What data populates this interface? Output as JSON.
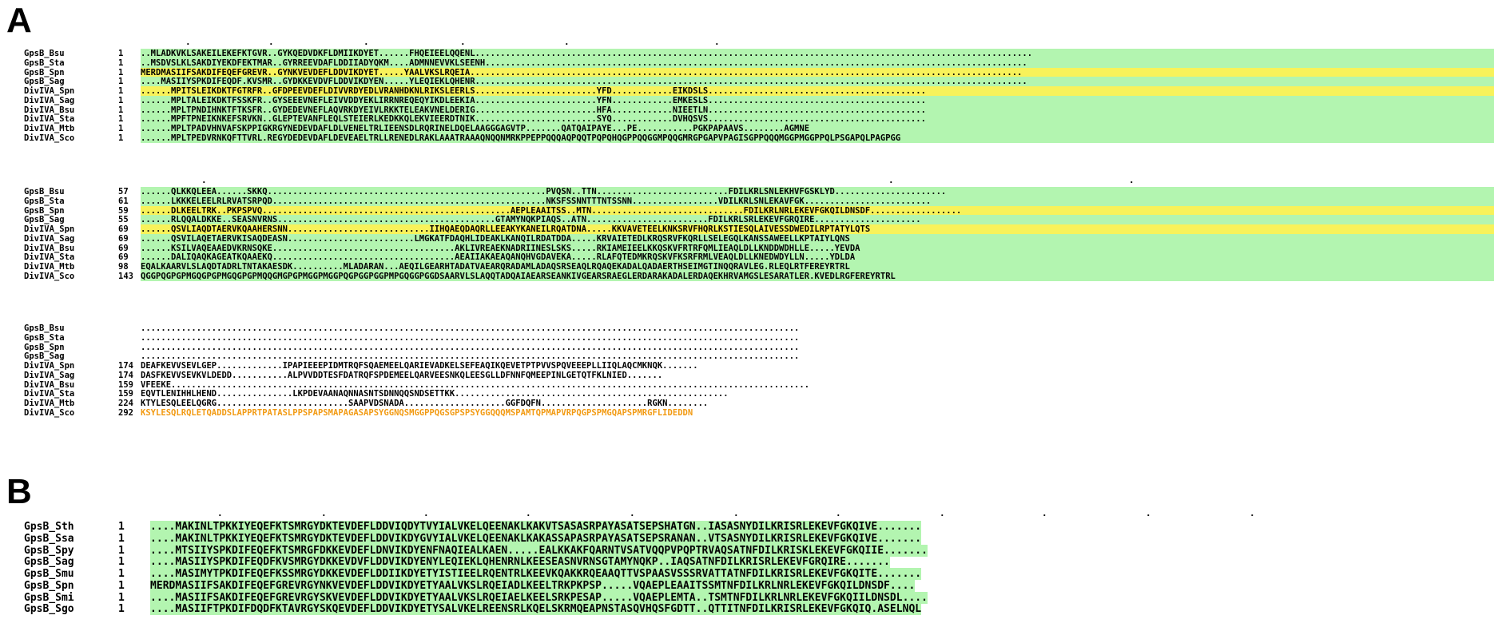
{
  "panels": [
    {
      "label": "A",
      "blocks": [
        {
          "rows": [
            {
              "name": "GpsB_Bsu",
              "start": "1",
              "seq": "..MLADKVKLSAKEILEKEFKTGVR..GYKQEDVDKFLDMIIKDYET......FHQEIEELQQENL..............................................................................................................",
              "bg": "g"
            },
            {
              "name": "GpsB_Sta",
              "start": "1",
              "seq": "..MSDVSLKLSAKDIYEKDFEKTMAR..GYRREEVDAFLDDIIADYQKM....ADMNNEVVKLSEENH...........................................................................................................",
              "bg": "g"
            },
            {
              "name": "GpsB_Spn",
              "start": "1",
              "seq": "MERDMASIIFSAKDIFEQEFGREVR..GYNKVEVDEFLDDVIKDYET.....YAALVKSLRQEIA.............................................................................................................",
              "bg": "y"
            },
            {
              "name": "GpsB_Sag",
              "start": "1",
              "seq": "....MASIIYSPKDIFEQDF.KVSMR..GYDKKEVDVFLDDVIKDYEN.....YLEQIEKLQHENR.............................................................................................................",
              "bg": "g"
            },
            {
              "name": "DivIVA_Spn",
              "start": "1",
              "seq": "......MPITSLEIKDKTFGTRFR..GFDPEEVDEFLDIVVRDYEDLVRANHDKNLRIKSLEERLS........................YFD............EIKDSLS...........................................",
              "bg": "y"
            },
            {
              "name": "DivIVA_Sag",
              "start": "1",
              "seq": "......MPLTALEIKDKTFSSKFR..GYSEEEVNEFLEIVVDDYEKLIRRNREQEQYIKDLEEKIA........................YFN............EMKESLS...........................................",
              "bg": "g"
            },
            {
              "name": "DivIVA_Bsu",
              "start": "1",
              "seq": "......MPLTPNDIHNKTFTKSFR..GYDEDEVNEFLAQVRKDYEIVLRKKTELEAKVNELDERIG........................HFA............NIEETLN...........................................",
              "bg": "g"
            },
            {
              "name": "DivIVA_Sta",
              "start": "1",
              "seq": "......MPFTPNEIKNKEFSRVKN..GLEPTEVANFLEQLSTEIERLKEDKKQLEKVIEERDTNIK........................SYQ............DVHQSVS...........................................",
              "bg": "g"
            },
            {
              "name": "DivIVA_Mtb",
              "start": "1",
              "seq": "......MPLTPADVHNVAFSKPPIGKRGYNEDEVDAFLDLVENELTRLIEENSDLRQRINELDQELAAGGGAGVTP.......QATQAIPAYE...PE...........PGKPAPAAVS........AGMNE",
              "bg": "g"
            },
            {
              "name": "DivIVA_Sco",
              "start": "1",
              "seq": "......MPLTPEDVRNKQFTTVRL.REGYDEDEVDAFLDEVEAELTRLLRENEDLRAKLAAATRAAAQNQQNMRKPPEPPQQQAQPQQTPQPQHQGPPQQGGMPQQGMRGPGAPVPAGISGPPQQQMGGPMGGPPQLPSGAPQLPAGPGG",
              "bg": "g"
            }
          ]
        },
        {
          "rows": [
            {
              "name": "GpsB_Bsu",
              "start": "57",
              "seq": "......QLKKQLEEA......SKKQ.......................................................PVQSN..TTN..........................FDILKRLSNLEKHVFGSKLYD......................",
              "bg": "g"
            },
            {
              "name": "GpsB_Sta",
              "start": "61",
              "seq": "......LKKKELEELRLRVATSRPQD......................................................NKSFSSNNTTTNTSSNN.................VDILKRLSNLEKAVFGK.........................",
              "bg": "g"
            },
            {
              "name": "GpsB_Spn",
              "start": "59",
              "seq": "......DLKEELTRK..PKPSPVQ.................................................AEPLEAAITSS..MTN..............................FDILKRLNRLEKEVFGKQILDNSDF..................",
              "bg": "y"
            },
            {
              "name": "GpsB_Sag",
              "start": "55",
              "seq": "......RLQQALDKKE..SEASNVRNS...........................................GTAMYNQKPIAQS..ATN........................FDILKRLSRLEKEVFGRQIRE.....................",
              "bg": "g"
            },
            {
              "name": "DivIVA_Spn",
              "start": "69",
              "seq": "......QSVLIAQDTAERVKQAAHERSNN............................IIHQAEQDAQRLLEEAKYKANEILRQATDNA.....KKVAVETEELKNKSRVFHQRLKSTIESQLAIVESSDWEDILRPTATYLQTS",
              "bg": "y"
            },
            {
              "name": "DivIVA_Sag",
              "start": "69",
              "seq": "......QSVILAQETAERVKISAQDEASN.........................LMGKATFDAQHLIDEAKLKANQILRDATDDA.....KRVAIETEDLKRQSRVFKQRLLSELEGQLKANSSAWEELLKPTAIYLQNS",
              "bg": "g"
            },
            {
              "name": "DivIVA_Bsu",
              "start": "69",
              "seq": "......KSILVAQEAAEDVKRNSQKE....................................AKLIVREAEKNADRIINESLSKS.....RKIAMEIEELKKQSKVFRTRFQMLIEAQLDLLKNDDWDHLLE.....YEVDA",
              "bg": "g"
            },
            {
              "name": "DivIVA_Sta",
              "start": "69",
              "seq": "......DALIQAQKAGEATKQAAEKQ....................................AEAIIAKAEAQANQHVGDAVEKA.....RLAFQTEDMKRQSKVFKSRFRMLVEAQLDLLKNEDWDYLLN.....YDLDA",
              "bg": "g"
            },
            {
              "name": "DivIVA_Mtb",
              "start": "98",
              "seq": "EQALKAARVLSLAQDTADRLTNTAKAESDK..........MLADARAN...AEQILGEARHTADATVAEARQRADAMLADAQSRSEAQLRQAQEKADALQADAERTHSEIMGTINQQRAVLEG.RLEQLRTFEREYRTRL",
              "bg": "g"
            },
            {
              "name": "DivIVA_Sco",
              "start": "143",
              "seq": "QGGPQGPGPMGQGPGPMGQGPGPMQQGMGPGPMGGPMGGPQGPGGPGGPMPGQGGPGGDSAARVLSLAQQTADQAIAEARSEANKIVGEARSRAEGLERDARAKADALERDAQEKHRVAMGSLESARATLER.KVEDLRGFEREYRTRL",
              "bg": "g"
            }
          ]
        },
        {
          "rows": [
            {
              "name": "GpsB_Bsu",
              "start": "",
              "seq": ".................................................................................................................................."
            },
            {
              "name": "GpsB_Sta",
              "start": "",
              "seq": ".................................................................................................................................."
            },
            {
              "name": "GpsB_Spn",
              "start": "",
              "seq": ".................................................................................................................................."
            },
            {
              "name": "GpsB_Sag",
              "start": "",
              "seq": ".................................................................................................................................."
            },
            {
              "name": "DivIVA_Spn",
              "start": "174",
              "seq": "DEAFKEVVSEVLGEP.............IPAPIEEEPIDMTRQFSQAEMEELQARIEVADKELSEFEAQIKQEVETPTPVVSPQVEEEPLLIIQLAQCMKNQK......."
            },
            {
              "name": "DivIVA_Sag",
              "start": "174",
              "seq": "DASFKEVVSEVKVLDEDD...........ALPVVDDTESFDATRQFSPDEMEELQARVEESNKQLEESGLLDFNNFQMEEPINLGETQTFKLNIED......."
            },
            {
              "name": "DivIVA_Bsu",
              "start": "159",
              "seq": "VFEEKE.............................................................................................................................."
            },
            {
              "name": "DivIVA_Sta",
              "start": "159",
              "seq": "EQVTLENIHHLHEND...............LKPDEVAANAQNNASNTSDNNQQSNDSETTKK......................................................"
            },
            {
              "name": "DivIVA_Mtb",
              "start": "224",
              "seq": "KTYLESQLEELQGRG..........................SAAPVDSNADA....................GGFDQFN.....................RGKN........"
            },
            {
              "name": "DivIVA_Sco",
              "start": "292",
              "seq": "KSYLESQLRQLETQADDSLAPPRTPATASLPPSPAPSMAPAGASAPSYGGNQSMGGPPQGSGPSPSYGGQQQMSPAMTQPMAPVRPQGPSPMGQAPSPMRGFLIDEDDN"
            }
          ]
        }
      ]
    },
    {
      "label": "B",
      "blocks": [
        {
          "rows": [
            {
              "name": "GpsB_Sth",
              "start": "1",
              "seq": "....MAKINLTPKKIYEQEFKTSMRGYDKTEVDEFLDDVIQDYTVYIALVKELQEENAKLKAKVTSASASRPAYASATSEPSHATGN..IASASNYDILKRISRLEKEVFGKQIVE......."
            },
            {
              "name": "GpsB_Ssa",
              "start": "1",
              "seq": "....MAKINLTPKKIYEQEFKTSMRGYDKTEVDEFLDDVIKDYGVYIALVKELQEENAKLKAKASSAPASRPAYASATSEPSRANAN..VTSASNYDILKRISRLEKEVFGKQIVE......."
            },
            {
              "name": "GpsB_Spy",
              "start": "1",
              "seq": "....MTSIIYSPKDIFEQEFKTSMRGFDKKEVDEFLDNVIKDYENFNAQIEALKAEN.....EALKKAKFQARNTVSATVQQPVPQPTRVAQSATNFDILKRISKLEKEVFGKQIIE......."
            },
            {
              "name": "GpsB_Sag",
              "start": "1",
              "seq": "....MASIIYSPKDIFEQDFKVSMRGYDKKEVDVFLDDVIKDYENYLEQIEKLQHENRNLKEESEASNVRNSGTAMYNQKP..IAQSATNFDILKRISRLEKEVFGRQIRE......."
            },
            {
              "name": "GpsB_Smu",
              "start": "1",
              "seq": "....MASIMYTPKDIFEQEFKSSMRGYDKKEVDEFLDDIIKDYETYISTIEELRQENTRLKEEVKQAKKRQEAAQTTVSPAASVSSSRVATTATNFDILKRISRLEKEVFGKQITE......."
            },
            {
              "name": "GpsB_Spn",
              "start": "1",
              "seq": "MERDMASIIFSAKDIFEQEFGREVRGYNKVEVDEFLDDVIKDYETYAALVKSLRQEIADLKEELTRKPKPSP.....VQAEPLEAAITSSMTNFDILKRLNRLEKEVFGKQILDNSDF...."
            },
            {
              "name": "GpsB_Smi",
              "start": "1",
              "seq": "....MASIIFSAKDIFEQEFGREVRGYSKVEVDEFLDDVIKDYETYAALVKSLRQEIAELKEELSRKPESAP.....VQAEPLEMTA..TSMTNFDILKRLNRLEKEVFGKQIILDNSDL...."
            },
            {
              "name": "GpsB_Sgo",
              "start": "1",
              "seq": "....MASIIFTPKDIFDQDFKTAVRGYSKQEVDEFLDDVIKDYETYSALVKELREENSRLKQELSKRMQEAPNSTASQVHQSFGDTT..QTTITNFDILKRISRLEKEVFGKQIQ.ASELNQL"
            }
          ]
        }
      ]
    }
  ]
}
